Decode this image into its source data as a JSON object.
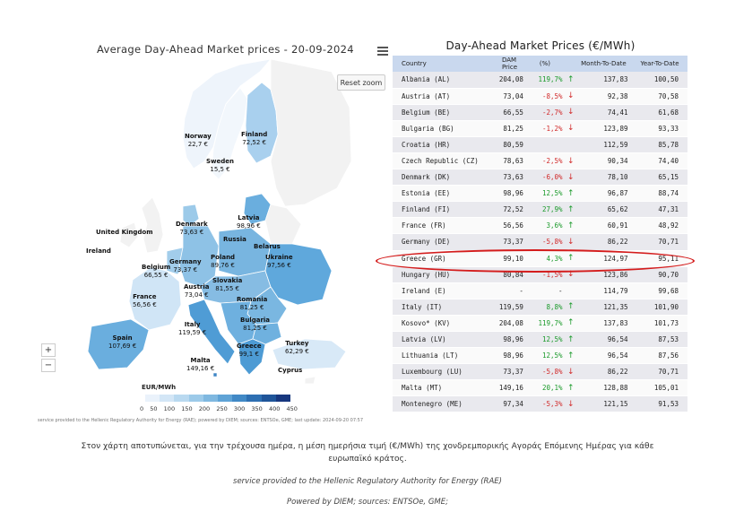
{
  "map": {
    "title": "Average Day-Ahead Market prices - 20-09-2024",
    "reset_zoom": "Reset zoom",
    "zoom_in": "+",
    "zoom_out": "−",
    "menu_icon": "hamburger-menu-icon",
    "legend_title": "EUR/MWh",
    "legend_ticks": [
      "0",
      "50",
      "100",
      "150",
      "200",
      "250",
      "300",
      "350",
      "400",
      "450"
    ],
    "legend_colors": [
      "#eaf2fb",
      "#d3e6f6",
      "#b9d9f0",
      "#9ccae9",
      "#7fb8e0",
      "#5fa3d6",
      "#4189c6",
      "#2d6fb2",
      "#1f5599",
      "#17377e"
    ],
    "credit": "service provided to the Hellenic Regulatory Authority for Energy (RAE); powered by DIEM; sources: ENTSOe, GME; last update: 2024-09-20 07:57",
    "labels": [
      {
        "name": "Norway",
        "value": "22,7 €"
      },
      {
        "name": "Finland",
        "value": "72,52 €"
      },
      {
        "name": "Sweden",
        "value": "15,5 €"
      },
      {
        "name": "Latvia",
        "value": "98,96 €"
      },
      {
        "name": "Denmark",
        "value": "73,63 €"
      },
      {
        "name": "United Kingdom",
        "value": ""
      },
      {
        "name": "Russia",
        "value": ""
      },
      {
        "name": "Belarus",
        "value": ""
      },
      {
        "name": "Ireland",
        "value": ""
      },
      {
        "name": "Germany",
        "value": "73,37 €"
      },
      {
        "name": "Poland",
        "value": "89,76 €"
      },
      {
        "name": "Belgium",
        "value": "66,55 €"
      },
      {
        "name": "Ukraine",
        "value": "97,56 €"
      },
      {
        "name": "Slovakia",
        "value": "81,55 €"
      },
      {
        "name": "Austria",
        "value": "73,04 €"
      },
      {
        "name": "France",
        "value": "56,56 €"
      },
      {
        "name": "Romania",
        "value": "81,25 €"
      },
      {
        "name": "Bulgaria",
        "value": "81,25 €"
      },
      {
        "name": "Italy",
        "value": "119,59 €"
      },
      {
        "name": "Spain",
        "value": "107,69 €"
      },
      {
        "name": "Turkey",
        "value": "62,29 €"
      },
      {
        "name": "Greece",
        "value": "99,1 €"
      },
      {
        "name": "Malta",
        "value": "149,16 €"
      },
      {
        "name": "Cyprus",
        "value": ""
      }
    ]
  },
  "table": {
    "title": "Day-Ahead Market Prices (€/MWh)",
    "columns": [
      "Country",
      "DAM Price",
      "(%)",
      "Month-To-Date",
      "Year-To-Date"
    ],
    "rows": [
      {
        "country": "Albania (AL)",
        "dam": "204,08",
        "pct": "119,7%",
        "dir": "up",
        "mtd": "137,83",
        "ytd": "100,50"
      },
      {
        "country": "Austria (AT)",
        "dam": "73,04",
        "pct": "-8,5%",
        "dir": "down",
        "mtd": "92,38",
        "ytd": "70,58"
      },
      {
        "country": "Belgium (BE)",
        "dam": "66,55",
        "pct": "-2,7%",
        "dir": "down",
        "mtd": "74,41",
        "ytd": "61,68"
      },
      {
        "country": "Bulgaria (BG)",
        "dam": "81,25",
        "pct": "-1,2%",
        "dir": "down",
        "mtd": "123,89",
        "ytd": "93,33"
      },
      {
        "country": "Croatia (HR)",
        "dam": "80,59",
        "pct": "",
        "dir": "",
        "mtd": "112,59",
        "ytd": "85,78"
      },
      {
        "country": "Czech Republic (CZ)",
        "dam": "78,63",
        "pct": "-2,5%",
        "dir": "down",
        "mtd": "90,34",
        "ytd": "74,40"
      },
      {
        "country": "Denmark (DK)",
        "dam": "73,63",
        "pct": "-6,0%",
        "dir": "down",
        "mtd": "78,10",
        "ytd": "65,15"
      },
      {
        "country": "Estonia (EE)",
        "dam": "98,96",
        "pct": "12,5%",
        "dir": "up",
        "mtd": "96,87",
        "ytd": "88,74"
      },
      {
        "country": "Finland (FI)",
        "dam": "72,52",
        "pct": "27,9%",
        "dir": "up",
        "mtd": "65,62",
        "ytd": "47,31"
      },
      {
        "country": "France (FR)",
        "dam": "56,56",
        "pct": "3,6%",
        "dir": "up",
        "mtd": "60,91",
        "ytd": "48,92"
      },
      {
        "country": "Germany (DE)",
        "dam": "73,37",
        "pct": "-5,8%",
        "dir": "down",
        "mtd": "86,22",
        "ytd": "70,71"
      },
      {
        "country": "Greece (GR)",
        "dam": "99,10",
        "pct": "4,3%",
        "dir": "up",
        "mtd": "124,97",
        "ytd": "95,11"
      },
      {
        "country": "Hungary (HU)",
        "dam": "80,84",
        "pct": "-1,5%",
        "dir": "down",
        "mtd": "123,86",
        "ytd": "90,70"
      },
      {
        "country": "Ireland (E)",
        "dam": "-",
        "pct": "-",
        "dir": "",
        "mtd": "114,79",
        "ytd": "99,68"
      },
      {
        "country": "Italy (IT)",
        "dam": "119,59",
        "pct": "8,8%",
        "dir": "up",
        "mtd": "121,35",
        "ytd": "101,90"
      },
      {
        "country": "Kosovo* (KV)",
        "dam": "204,08",
        "pct": "119,7%",
        "dir": "up",
        "mtd": "137,83",
        "ytd": "101,73"
      },
      {
        "country": "Latvia (LV)",
        "dam": "98,96",
        "pct": "12,5%",
        "dir": "up",
        "mtd": "96,54",
        "ytd": "87,53"
      },
      {
        "country": "Lithuania (LT)",
        "dam": "98,96",
        "pct": "12,5%",
        "dir": "up",
        "mtd": "96,54",
        "ytd": "87,56"
      },
      {
        "country": "Luxembourg (LU)",
        "dam": "73,37",
        "pct": "-5,8%",
        "dir": "down",
        "mtd": "86,22",
        "ytd": "70,71"
      },
      {
        "country": "Malta (MT)",
        "dam": "149,16",
        "pct": "20,1%",
        "dir": "up",
        "mtd": "128,88",
        "ytd": "105,01"
      },
      {
        "country": "Montenegro (ME)",
        "dam": "97,34",
        "pct": "-5,3%",
        "dir": "down",
        "mtd": "121,15",
        "ytd": "91,53"
      }
    ],
    "highlighted_row": "Greece (GR)",
    "colors": {
      "header_bg": "#c9d8ee",
      "up": "#1a9a2a",
      "down": "#d12a2a",
      "highlight": "#d41c1c"
    }
  },
  "footer": {
    "description": "Στον χάρτη αποτυπώνεται, για την τρέχουσα ημέρα, η μέση ημερήσια τιμή (€/MWh) της χονδρεμπορικής Αγοράς Επόμενης Ημέρας για κάθε ευρωπαϊκό κράτος.",
    "service": "service provided to the Hellenic Regulatory Authority for Energy (RAE)",
    "powered": "Powered by DIEM; sources: ENTSOe, GME;"
  }
}
